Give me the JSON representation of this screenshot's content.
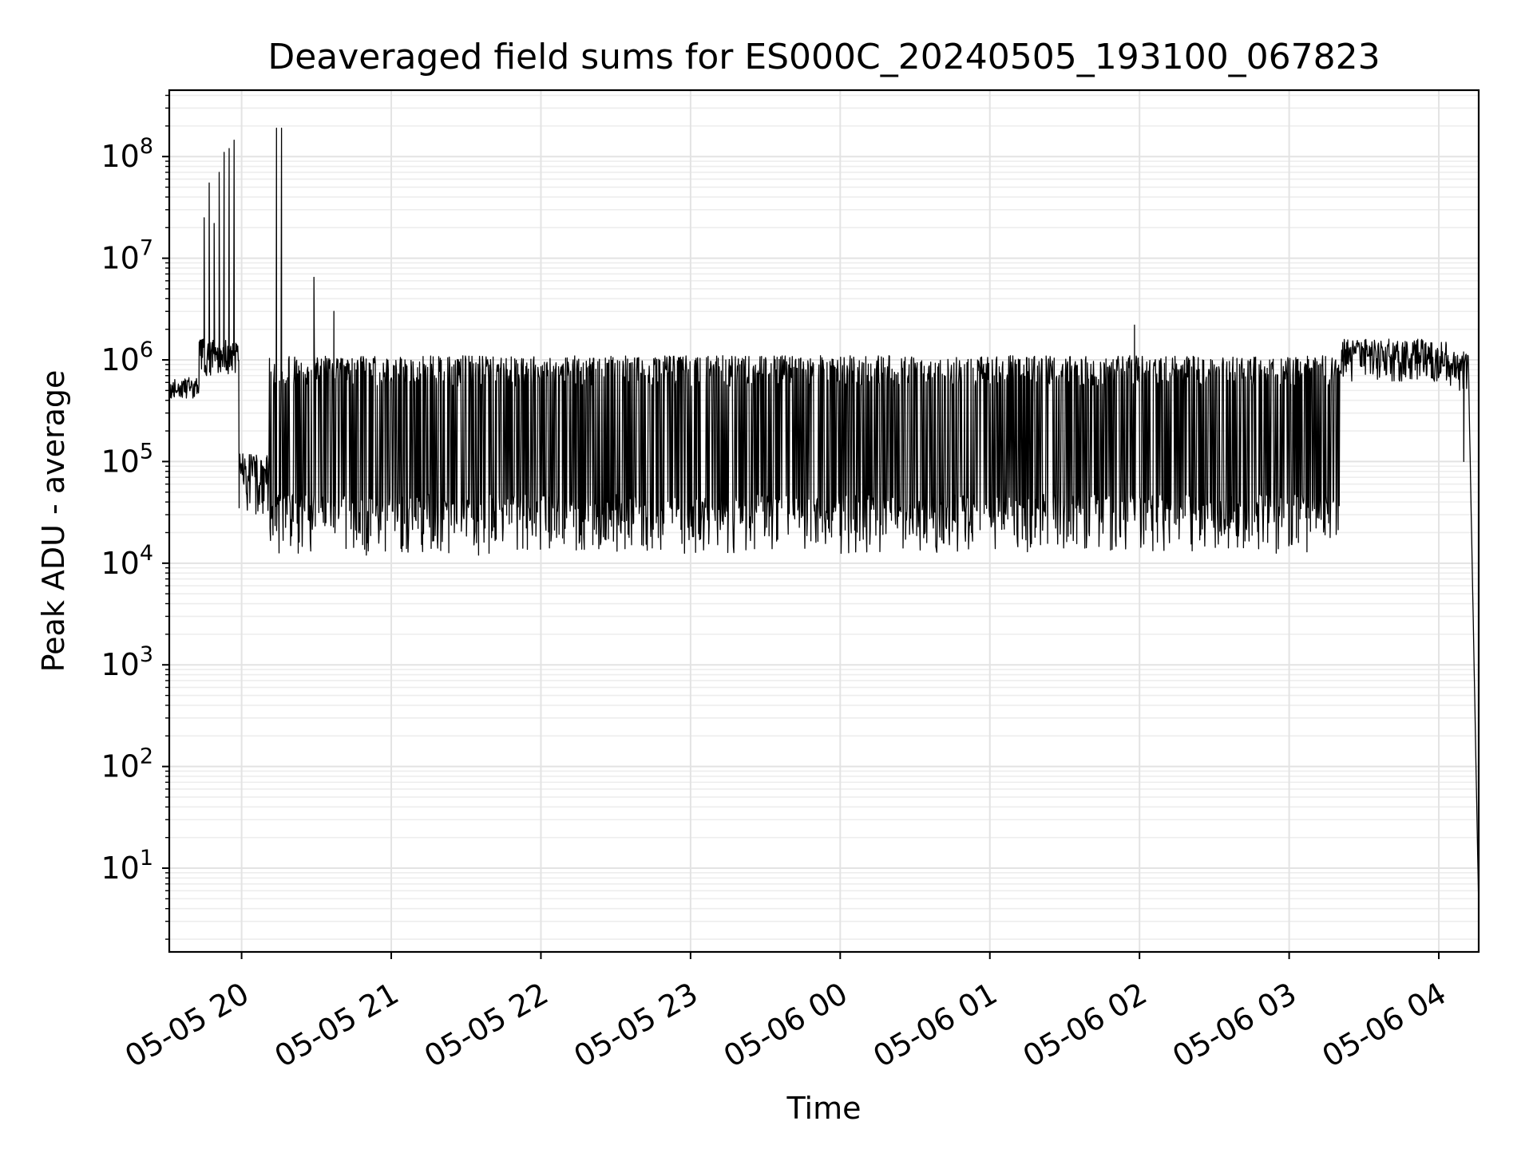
{
  "chart_data": {
    "type": "line",
    "title": "Deaveraged field sums for ES000C_20240505_193100_067823",
    "xlabel": "Time",
    "ylabel": "Peak ADU - average",
    "yscale": "log",
    "ylim": [
      1.5,
      450000000
    ],
    "xlim": [
      "2024-05-05 19:31",
      "2024-05-06 04:16"
    ],
    "grid": true,
    "legend": "none",
    "line_color": "#000000",
    "x_ticks": [
      {
        "value": "2024-05-05 20:00",
        "label": "05-05 20"
      },
      {
        "value": "2024-05-05 21:00",
        "label": "05-05 21"
      },
      {
        "value": "2024-05-05 22:00",
        "label": "05-05 22"
      },
      {
        "value": "2024-05-05 23:00",
        "label": "05-05 23"
      },
      {
        "value": "2024-05-06 00:00",
        "label": "05-06 00"
      },
      {
        "value": "2024-05-06 01:00",
        "label": "05-06 01"
      },
      {
        "value": "2024-05-06 02:00",
        "label": "05-06 02"
      },
      {
        "value": "2024-05-06 03:00",
        "label": "05-06 03"
      },
      {
        "value": "2024-05-06 04:00",
        "label": "05-06 04"
      }
    ],
    "y_ticks": [
      {
        "value": 10,
        "base": "10",
        "exp": "1"
      },
      {
        "value": 100,
        "base": "10",
        "exp": "2"
      },
      {
        "value": 1000,
        "base": "10",
        "exp": "3"
      },
      {
        "value": 10000,
        "base": "10",
        "exp": "4"
      },
      {
        "value": 100000,
        "base": "10",
        "exp": "5"
      },
      {
        "value": 1000000,
        "base": "10",
        "exp": "6"
      },
      {
        "value": 10000000,
        "base": "10",
        "exp": "7"
      },
      {
        "value": 100000000,
        "base": "10",
        "exp": "8"
      }
    ],
    "series": [
      {
        "description_points": [
          {
            "x": "2024-05-05 19:31",
            "y": 480000
          },
          {
            "x": "2024-05-05 19:40",
            "y": 600000
          },
          {
            "x": "2024-05-05 19:43",
            "y": 1500000
          },
          {
            "x": "2024-05-05 19:45",
            "y": 25000000
          },
          {
            "x": "2024-05-05 19:47",
            "y": 55000000
          },
          {
            "x": "2024-05-05 19:49",
            "y": 22000000
          },
          {
            "x": "2024-05-05 19:51",
            "y": 70000000
          },
          {
            "x": "2024-05-05 19:53",
            "y": 110000000
          },
          {
            "x": "2024-05-05 19:55",
            "y": 120000000
          },
          {
            "x": "2024-05-05 19:57",
            "y": 145000000
          },
          {
            "x": "2024-05-05 19:59",
            "y": 35000
          },
          {
            "x": "2024-05-05 20:10",
            "y": 60000
          },
          {
            "x": "2024-05-05 20:14",
            "y": 190000000
          },
          {
            "x": "2024-05-05 20:16",
            "y": 190000000
          },
          {
            "x": "2024-05-05 20:29",
            "y": 6500000
          },
          {
            "x": "2024-05-05 20:37",
            "y": 3000000
          },
          {
            "x": "2024-05-05 20:50",
            "y": 12000
          },
          {
            "x": "2024-05-05 21:35",
            "y": 12000
          },
          {
            "x": "2024-05-06 01:58",
            "y": 2200000
          },
          {
            "x": "2024-05-06 03:40",
            "y": 1600000
          },
          {
            "x": "2024-05-06 04:03",
            "y": 1400000
          },
          {
            "x": "2024-05-06 04:10",
            "y": 100000
          },
          {
            "x": "2024-05-06 04:16",
            "y": 4
          }
        ],
        "band_low": 25000,
        "band_high": 1000000
      }
    ]
  }
}
